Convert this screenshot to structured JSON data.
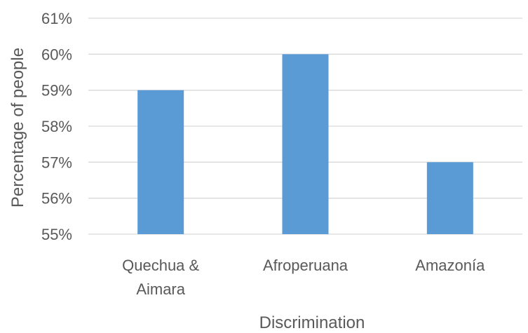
{
  "chart_data": {
    "type": "bar",
    "categories": [
      "Quechua & Aimara",
      "Afroperuana",
      "Amazonía"
    ],
    "category_lines": [
      [
        "Quechua &",
        "Aimara"
      ],
      [
        "Afroperuana"
      ],
      [
        "Amazonía"
      ]
    ],
    "values": [
      59,
      60,
      57
    ],
    "value_format": "percent",
    "title": "",
    "xlabel": "Discrimination",
    "ylabel": "Percentage of people",
    "ylim": [
      55,
      61
    ],
    "yticks": [
      55,
      56,
      57,
      58,
      59,
      60,
      61
    ],
    "ytick_labels": [
      "55%",
      "56%",
      "57%",
      "58%",
      "59%",
      "60%",
      "61%"
    ],
    "grid": true,
    "legend": "none",
    "colors": {
      "bar": "#5B9BD5",
      "grid": "#D9D9D9",
      "text": "#595959"
    }
  }
}
